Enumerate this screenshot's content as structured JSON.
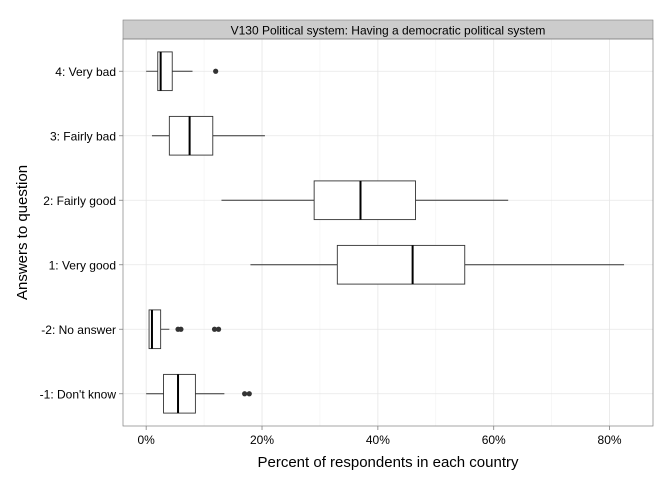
{
  "chart_data": {
    "type": "boxplot",
    "orientation": "horizontal",
    "facet_title": "V130 Political system: Having a democratic political system",
    "xlabel": "Percent of respondents in each country",
    "ylabel": "Answers to question",
    "xlim": [
      -4,
      87.5
    ],
    "x_ticks": [
      0,
      20,
      40,
      60,
      80
    ],
    "x_tick_labels": [
      "0%",
      "20%",
      "40%",
      "60%",
      "80%"
    ],
    "grid": true,
    "categories": [
      "4: Very bad",
      "3: Fairly bad",
      "2: Fairly good",
      "1: Very good",
      "-2: No answer",
      "-1: Don't know"
    ],
    "boxes": [
      {
        "category": "4: Very bad",
        "whisker_low": 0,
        "q1": 2,
        "median": 2.5,
        "q3": 4.5,
        "whisker_high": 8,
        "outliers": [
          12
        ]
      },
      {
        "category": "3: Fairly bad",
        "whisker_low": 1,
        "q1": 4,
        "median": 7.5,
        "q3": 11.5,
        "whisker_high": 20.5,
        "outliers": []
      },
      {
        "category": "2: Fairly good",
        "whisker_low": 13,
        "q1": 29,
        "median": 37,
        "q3": 46.5,
        "whisker_high": 62.5,
        "outliers": []
      },
      {
        "category": "1: Very good",
        "whisker_low": 18,
        "q1": 33,
        "median": 46,
        "q3": 55,
        "whisker_high": 82.5,
        "outliers": []
      },
      {
        "category": "-2: No answer",
        "whisker_low": 0.5,
        "q1": 0.5,
        "median": 1,
        "q3": 2.5,
        "whisker_high": 4,
        "outliers": [
          5.5,
          6,
          11.8,
          12.5
        ]
      },
      {
        "category": "-1: Don't know",
        "whisker_low": 0,
        "q1": 3,
        "median": 5.5,
        "q3": 8.5,
        "whisker_high": 13.5,
        "outliers": [
          17,
          17.8
        ]
      }
    ]
  }
}
